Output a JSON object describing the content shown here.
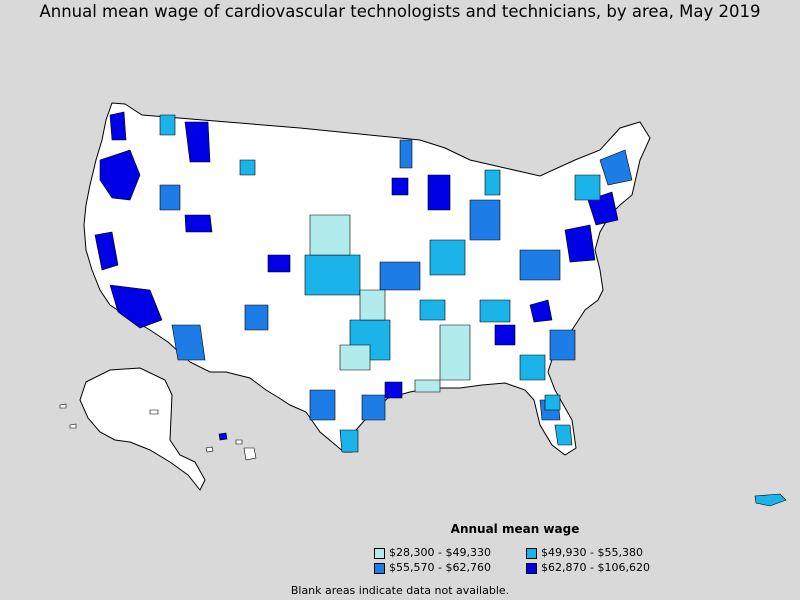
{
  "title": "Annual mean wage of cardiovascular technologists and technicians, by area, May 2019",
  "legend": {
    "title": "Annual mean wage",
    "items": [
      {
        "label": "$28,300 - $49,330",
        "color": "#b2ebeb"
      },
      {
        "label": "$49,930 - $55,380",
        "color": "#1ab4eb"
      },
      {
        "label": "$55,570 - $62,760",
        "color": "#1e7ce6"
      },
      {
        "label": "$62,870 - $106,620",
        "color": "#0000e6"
      }
    ]
  },
  "footnote": "Blank areas indicate data not available.",
  "colors": {
    "background": "#d9d9d9",
    "land": "#ffffff",
    "border": "#000000"
  }
}
